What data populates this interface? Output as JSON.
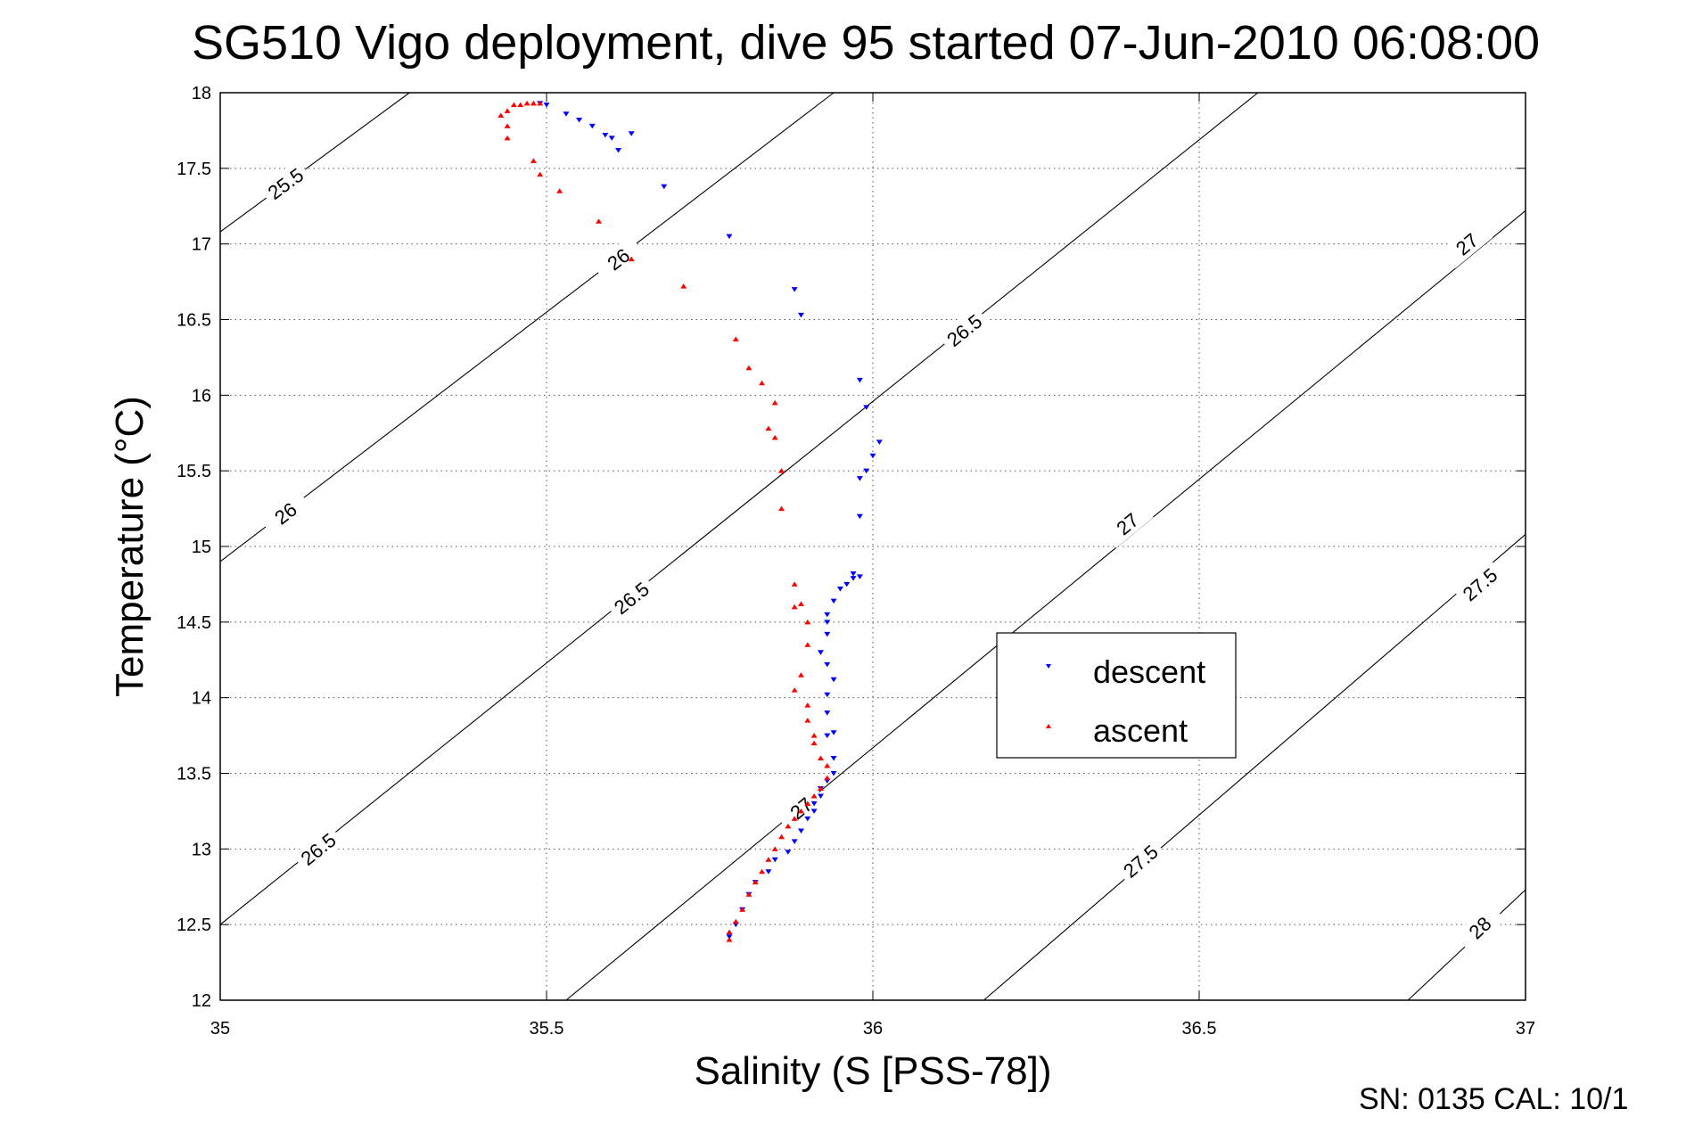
{
  "chart_data": {
    "type": "scatter",
    "title": "SG510 Vigo deployment, dive 95 started 07-Jun-2010 06:08:00",
    "xlabel": "Salinity (S [PSS-78])",
    "ylabel": "Temperature (°C)",
    "xlim": [
      35,
      37
    ],
    "ylim": [
      12,
      18
    ],
    "xticks": [
      35,
      35.5,
      36,
      36.5,
      37
    ],
    "xtick_labels": [
      "35",
      "35.5",
      "36",
      "36.5",
      "37"
    ],
    "yticks": [
      12,
      12.5,
      13,
      13.5,
      14,
      14.5,
      15,
      15.5,
      16,
      16.5,
      17,
      17.5,
      18
    ],
    "ytick_labels": [
      "12",
      "12.5",
      "13",
      "13.5",
      "14",
      "14.5",
      "15",
      "15.5",
      "16",
      "16.5",
      "17",
      "17.5",
      "18"
    ],
    "grid": true,
    "legend_position": "center-right",
    "isopycnals": [
      {
        "label": "25.5",
        "points": [
          [
            35.0,
            17.08
          ],
          [
            35.29,
            18.0
          ]
        ],
        "labels_at": [
          [
            35.1,
            17.4
          ]
        ]
      },
      {
        "label": "26",
        "points": [
          [
            35.0,
            14.9
          ],
          [
            35.94,
            18.0
          ]
        ],
        "labels_at": [
          [
            35.1,
            15.22
          ],
          [
            35.61,
            16.9
          ]
        ]
      },
      {
        "label": "26.5",
        "points": [
          [
            35.0,
            12.5
          ],
          [
            36.59,
            18.0
          ]
        ],
        "labels_at": [
          [
            35.15,
            13.0
          ],
          [
            35.63,
            14.66
          ],
          [
            36.14,
            16.43
          ]
        ]
      },
      {
        "label": "27",
        "points": [
          [
            35.53,
            12.0
          ],
          [
            37.0,
            17.22
          ]
        ],
        "labels_at": [
          [
            35.89,
            13.27
          ],
          [
            36.39,
            15.15
          ],
          [
            36.91,
            17.0
          ]
        ]
      },
      {
        "label": "27.5",
        "points": [
          [
            36.17,
            12.0
          ],
          [
            37.0,
            15.08
          ]
        ],
        "labels_at": [
          [
            36.41,
            12.92
          ],
          [
            36.93,
            14.75
          ]
        ]
      },
      {
        "label": "28",
        "points": [
          [
            36.82,
            12.0
          ],
          [
            37.0,
            12.73
          ]
        ],
        "labels_at": [
          [
            36.93,
            12.48
          ]
        ]
      }
    ],
    "series": [
      {
        "name": "descent",
        "color": "#0000ff",
        "marker": "triangle-down",
        "x": [
          35.49,
          35.5,
          35.53,
          35.55,
          35.57,
          35.59,
          35.6,
          35.61,
          35.63,
          35.68,
          35.78,
          35.88,
          35.89,
          35.98,
          35.99,
          36.01,
          36.0,
          35.99,
          35.98,
          35.98,
          35.97,
          35.98,
          35.97,
          35.96,
          35.95,
          35.94,
          35.93,
          35.93,
          35.93,
          35.92,
          35.93,
          35.94,
          35.93,
          35.93,
          35.94,
          35.93,
          35.94,
          35.94,
          35.93,
          35.92,
          35.92,
          35.91,
          35.91,
          35.9,
          35.89,
          35.88,
          35.87,
          35.85,
          35.84,
          35.82,
          35.81,
          35.8,
          35.79,
          35.78
        ],
        "y": [
          17.93,
          17.92,
          17.86,
          17.82,
          17.78,
          17.72,
          17.7,
          17.62,
          17.73,
          17.38,
          17.05,
          16.7,
          16.53,
          16.1,
          15.92,
          15.69,
          15.6,
          15.5,
          15.45,
          15.2,
          14.82,
          14.8,
          14.79,
          14.75,
          14.72,
          14.64,
          14.55,
          14.5,
          14.42,
          14.3,
          14.22,
          14.12,
          14.02,
          13.9,
          13.77,
          13.75,
          13.6,
          13.5,
          13.45,
          13.4,
          13.35,
          13.3,
          13.25,
          13.2,
          13.12,
          13.05,
          12.98,
          12.93,
          12.85,
          12.78,
          12.7,
          12.6,
          12.5,
          12.42
        ]
      },
      {
        "name": "ascent",
        "color": "#ff0000",
        "marker": "triangle-up",
        "x": [
          35.44,
          35.44,
          35.43,
          35.44,
          35.45,
          35.46,
          35.47,
          35.48,
          35.49,
          35.48,
          35.49,
          35.52,
          35.58,
          35.63,
          35.71,
          35.79,
          35.81,
          35.83,
          35.85,
          35.85,
          35.84,
          35.86,
          35.86,
          35.88,
          35.88,
          35.89,
          35.9,
          35.9,
          35.89,
          35.88,
          35.9,
          35.9,
          35.91,
          35.91,
          35.92,
          35.93,
          35.93,
          35.92,
          35.91,
          35.9,
          35.89,
          35.88,
          35.87,
          35.86,
          35.85,
          35.84,
          35.83,
          35.82,
          35.81,
          35.8,
          35.79,
          35.78,
          35.78
        ],
        "y": [
          17.7,
          17.78,
          17.85,
          17.88,
          17.92,
          17.92,
          17.93,
          17.93,
          17.93,
          17.55,
          17.46,
          17.35,
          17.15,
          16.9,
          16.72,
          16.37,
          16.18,
          16.08,
          15.95,
          15.72,
          15.78,
          15.5,
          15.25,
          14.6,
          14.75,
          14.62,
          14.5,
          14.35,
          14.15,
          14.05,
          13.95,
          13.85,
          13.75,
          13.7,
          13.6,
          13.55,
          13.47,
          13.4,
          13.35,
          13.3,
          13.25,
          13.2,
          13.15,
          13.08,
          13.0,
          12.93,
          12.85,
          12.78,
          12.7,
          12.6,
          12.52,
          12.45,
          12.4
        ]
      }
    ]
  },
  "legend": {
    "descent_label": "descent",
    "ascent_label": "ascent"
  },
  "footer": {
    "text": "SN: 0135  CAL: 10/1"
  }
}
